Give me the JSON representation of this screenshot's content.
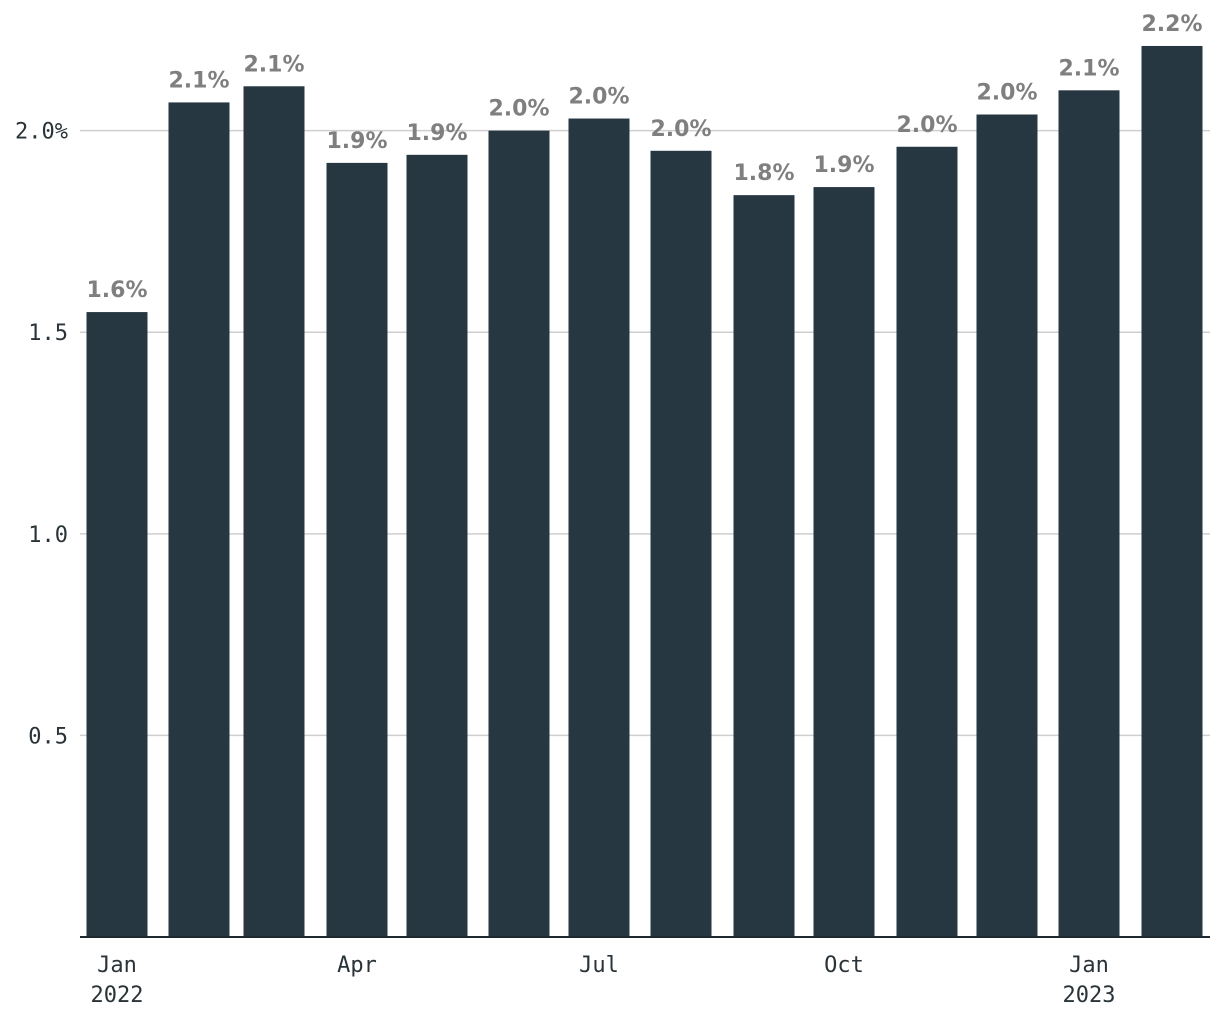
{
  "chart_data": {
    "type": "bar",
    "title": "",
    "xlabel": "",
    "ylabel": "",
    "categories": [
      "2022-01",
      "2022-02",
      "2022-03",
      "2022-04",
      "2022-05",
      "2022-06",
      "2022-07",
      "2022-08",
      "2022-09",
      "2022-10",
      "2022-11",
      "2022-12",
      "2023-01",
      "2023-02"
    ],
    "values": [
      1.55,
      2.07,
      2.11,
      1.92,
      1.94,
      2.0,
      2.03,
      1.95,
      1.84,
      1.86,
      1.96,
      2.04,
      2.1,
      2.21
    ],
    "data_labels": [
      "1.6%",
      "2.1%",
      "2.1%",
      "1.9%",
      "1.9%",
      "2.0%",
      "2.0%",
      "2.0%",
      "1.8%",
      "1.9%",
      "2.0%",
      "2.0%",
      "2.1%",
      "2.2%"
    ],
    "ylim": [
      0,
      2.2
    ],
    "yticks": [
      {
        "value": 0.5,
        "label": "0.5"
      },
      {
        "value": 1.0,
        "label": "1.0"
      },
      {
        "value": 1.5,
        "label": "1.5"
      },
      {
        "value": 2.0,
        "label": "2.0%"
      }
    ],
    "xticks": [
      {
        "index": 0,
        "lines": [
          "Jan",
          "2022"
        ]
      },
      {
        "index": 3,
        "lines": [
          "Apr"
        ]
      },
      {
        "index": 6,
        "lines": [
          "Jul"
        ]
      },
      {
        "index": 9,
        "lines": [
          "Oct"
        ]
      },
      {
        "index": 12,
        "lines": [
          "Jan",
          "2023"
        ]
      }
    ],
    "grid": true,
    "legend": "none",
    "colors": {
      "bar": "#263741",
      "data_label": "#7f7f7f",
      "grid": "#cfcfcf",
      "axis": "#1f2a30",
      "tick_text": "#2a3338"
    }
  }
}
